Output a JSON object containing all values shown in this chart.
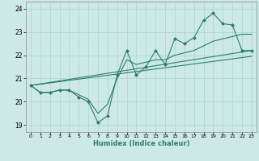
{
  "xlabel": "Humidex (Indice chaleur)",
  "ylabel": "",
  "bg_color": "#cce9e6",
  "grid_color": "#aad4d0",
  "line_color": "#2e7d6e",
  "xlim": [
    -0.5,
    23.5
  ],
  "ylim": [
    18.7,
    24.3
  ],
  "xticks": [
    0,
    1,
    2,
    3,
    4,
    5,
    6,
    7,
    8,
    9,
    10,
    11,
    12,
    13,
    14,
    15,
    16,
    17,
    18,
    19,
    20,
    21,
    22,
    23
  ],
  "yticks": [
    19,
    20,
    21,
    22,
    23,
    24
  ],
  "zigzag_x": [
    0,
    1,
    2,
    3,
    4,
    5,
    6,
    7,
    8,
    9,
    10,
    11,
    12,
    13,
    14,
    15,
    16,
    17,
    18,
    19,
    20,
    21,
    22,
    23
  ],
  "zigzag_y": [
    20.7,
    20.4,
    20.4,
    20.5,
    20.5,
    20.2,
    20.0,
    19.1,
    19.4,
    21.15,
    22.2,
    21.15,
    21.5,
    22.2,
    21.6,
    22.7,
    22.5,
    22.75,
    23.5,
    23.8,
    23.35,
    23.3,
    22.2,
    22.2
  ],
  "smooth_x": [
    0,
    1,
    2,
    3,
    4,
    5,
    6,
    7,
    8,
    9,
    10,
    11,
    12,
    13,
    14,
    15,
    16,
    17,
    18,
    19,
    20,
    21,
    22,
    23
  ],
  "smooth_y": [
    20.7,
    20.4,
    20.4,
    20.5,
    20.5,
    20.3,
    20.1,
    19.5,
    19.9,
    21.0,
    21.8,
    21.6,
    21.7,
    21.8,
    21.8,
    22.0,
    22.1,
    22.2,
    22.4,
    22.6,
    22.7,
    22.8,
    22.9,
    22.9
  ],
  "trend1_x": [
    0,
    23
  ],
  "trend1_y": [
    20.7,
    22.2
  ],
  "trend2_x": [
    0,
    23
  ],
  "trend2_y": [
    20.7,
    21.95
  ]
}
